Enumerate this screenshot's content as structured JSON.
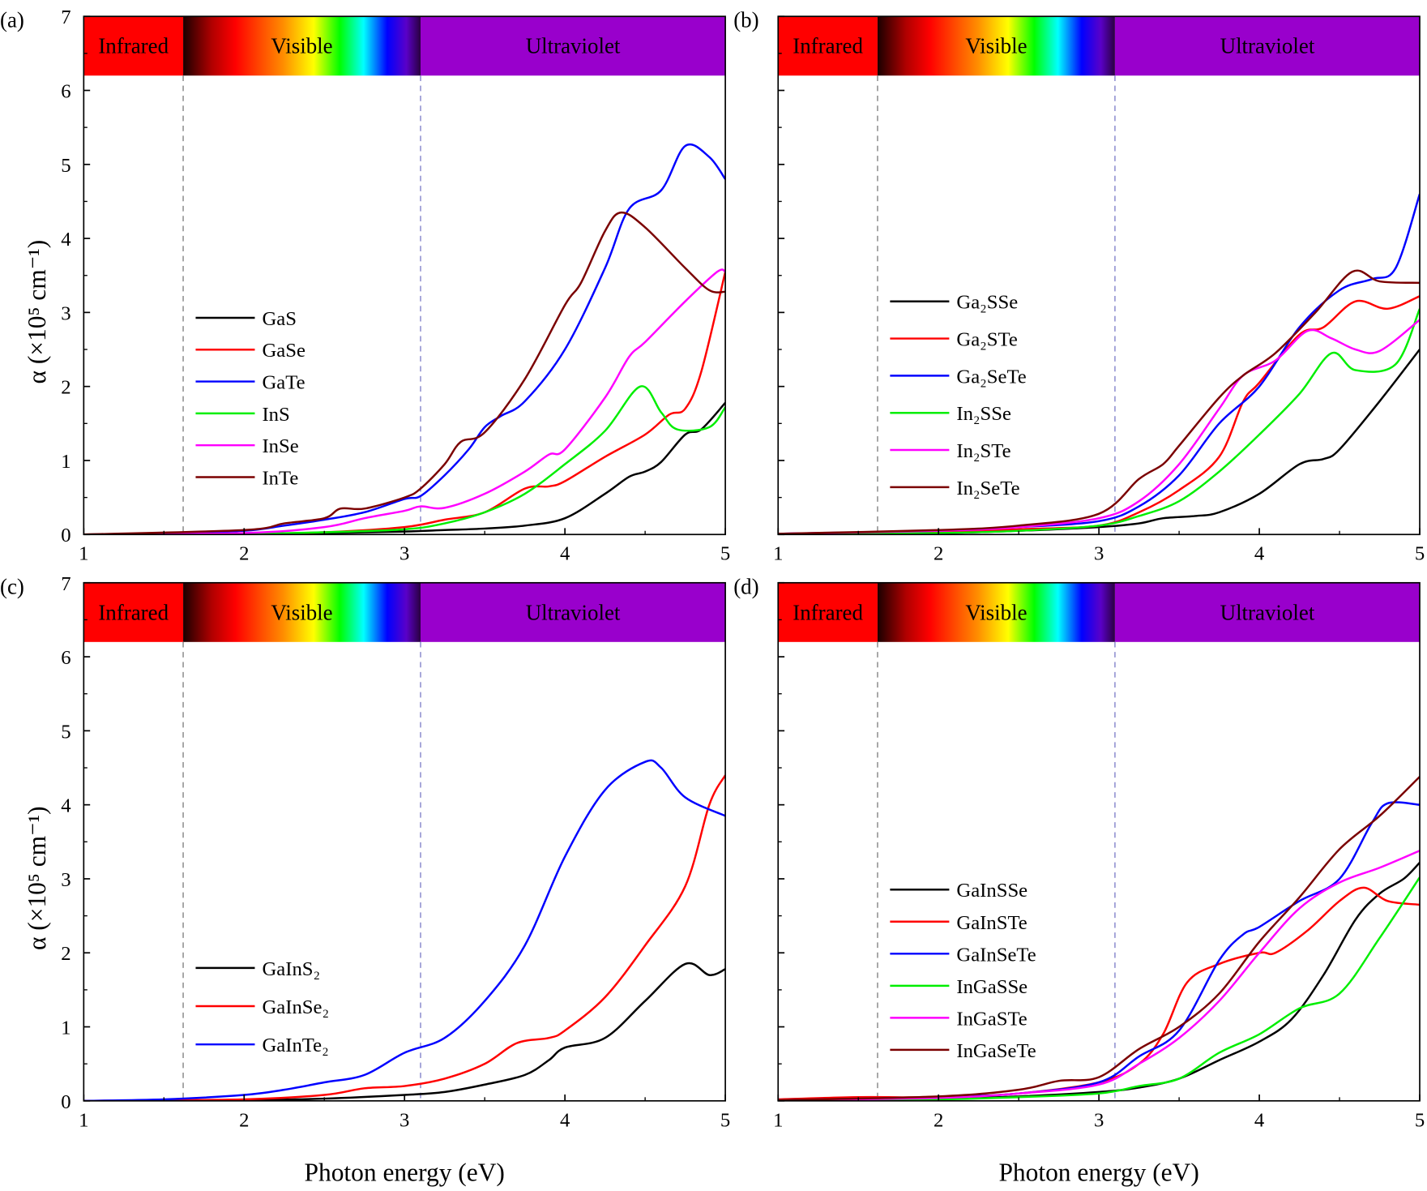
{
  "figure": {
    "xlabel": "Photon energy (eV)",
    "ylabel": "α (×10⁵ cm⁻¹)",
    "bands": [
      {
        "label": "Infrared",
        "from": 1.0,
        "to": 1.62,
        "color": "#ff0000"
      },
      {
        "label": "Visible",
        "from": 1.62,
        "to": 3.1,
        "color": "gradient"
      },
      {
        "label": "Ultraviolet",
        "from": 3.1,
        "to": 5.0,
        "color": "#9900cc"
      }
    ],
    "band_ylim": [
      6.2,
      7
    ],
    "boundaries_eV": [
      1.62,
      3.1
    ]
  },
  "chart_data": [
    {
      "type": "line",
      "panel_label": "(a)",
      "xlim": [
        1,
        5
      ],
      "ylim": [
        0,
        7
      ],
      "xticks": [
        "1",
        "2",
        "3",
        "4",
        "5"
      ],
      "yticks": [
        "0",
        "1",
        "2",
        "3",
        "4",
        "5",
        "6",
        "7"
      ],
      "xlabel": "",
      "ylabel": "α (×10⁵ cm⁻¹)",
      "legend": "center-left",
      "series": [
        {
          "name": "GaS",
          "color": "#000000",
          "x": [
            1,
            2,
            2.5,
            3,
            3.25,
            3.5,
            3.75,
            4,
            4.25,
            4.4,
            4.5,
            4.6,
            4.75,
            4.85,
            5
          ],
          "y": [
            0,
            0.01,
            0.02,
            0.04,
            0.06,
            0.08,
            0.12,
            0.22,
            0.55,
            0.78,
            0.85,
            0.98,
            1.35,
            1.42,
            1.78
          ]
        },
        {
          "name": "GaSe",
          "color": "#ff0000",
          "x": [
            1,
            2,
            2.5,
            3,
            3.25,
            3.5,
            3.75,
            3.9,
            4,
            4.25,
            4.5,
            4.65,
            4.75,
            4.85,
            5
          ],
          "y": [
            0,
            0.01,
            0.03,
            0.1,
            0.2,
            0.3,
            0.62,
            0.65,
            0.72,
            1.05,
            1.35,
            1.62,
            1.7,
            2.2,
            3.55
          ]
        },
        {
          "name": "GaTe",
          "color": "#0000ff",
          "x": [
            1,
            1.5,
            2,
            2.25,
            2.5,
            2.75,
            3,
            3.1,
            3.25,
            3.4,
            3.5,
            3.6,
            3.75,
            4,
            4.25,
            4.4,
            4.6,
            4.75,
            4.9,
            5
          ],
          "y": [
            0,
            0.01,
            0.05,
            0.12,
            0.2,
            0.3,
            0.48,
            0.52,
            0.8,
            1.15,
            1.45,
            1.6,
            1.8,
            2.5,
            3.6,
            4.4,
            4.65,
            5.25,
            5.1,
            4.8
          ]
        },
        {
          "name": "InS",
          "color": "#00ee00",
          "x": [
            1,
            2,
            2.5,
            3,
            3.25,
            3.5,
            3.75,
            4,
            4.25,
            4.47,
            4.6,
            4.7,
            4.9,
            5
          ],
          "y": [
            0,
            0.01,
            0.03,
            0.07,
            0.15,
            0.3,
            0.55,
            0.95,
            1.4,
            2.0,
            1.65,
            1.42,
            1.45,
            1.72
          ]
        },
        {
          "name": "InSe",
          "color": "#ff00ff",
          "x": [
            1,
            2,
            2.5,
            2.75,
            3,
            3.1,
            3.25,
            3.5,
            3.75,
            3.9,
            4,
            4.25,
            4.4,
            4.5,
            4.75,
            4.95,
            5
          ],
          "y": [
            0,
            0.02,
            0.1,
            0.22,
            0.32,
            0.38,
            0.36,
            0.55,
            0.85,
            1.08,
            1.15,
            1.85,
            2.4,
            2.6,
            3.15,
            3.55,
            3.55
          ]
        },
        {
          "name": "InTe",
          "color": "#7b0000",
          "x": [
            1,
            2,
            2.25,
            2.5,
            2.6,
            2.75,
            3,
            3.1,
            3.25,
            3.35,
            3.5,
            3.75,
            4,
            4.1,
            4.25,
            4.35,
            4.5,
            4.75,
            4.9,
            5
          ],
          "y": [
            0,
            0.06,
            0.15,
            0.22,
            0.35,
            0.35,
            0.5,
            0.62,
            0.95,
            1.25,
            1.38,
            2.1,
            3.1,
            3.4,
            4.1,
            4.35,
            4.15,
            3.6,
            3.3,
            3.28
          ]
        }
      ]
    },
    {
      "type": "line",
      "panel_label": "(b)",
      "xlim": [
        1,
        5
      ],
      "ylim": [
        0,
        7
      ],
      "xticks": [
        "1",
        "2",
        "3",
        "4",
        "5"
      ],
      "yticks": [],
      "xlabel": "",
      "ylabel": "",
      "legend": "center-left",
      "series": [
        {
          "name": "Ga₂SSe",
          "color": "#000000",
          "x": [
            1,
            2,
            2.5,
            3,
            3.25,
            3.4,
            3.6,
            3.75,
            4,
            4.25,
            4.4,
            4.5,
            4.75,
            5
          ],
          "y": [
            0,
            0.02,
            0.05,
            0.1,
            0.15,
            0.22,
            0.25,
            0.3,
            0.55,
            0.95,
            1.02,
            1.15,
            1.8,
            2.5
          ]
        },
        {
          "name": "Ga₂STe",
          "color": "#ff0000",
          "x": [
            1,
            2,
            2.5,
            3,
            3.25,
            3.5,
            3.75,
            3.9,
            4,
            4.25,
            4.4,
            4.6,
            4.8,
            5
          ],
          "y": [
            0.01,
            0.03,
            0.07,
            0.12,
            0.3,
            0.6,
            1.05,
            1.8,
            2.05,
            2.7,
            2.8,
            3.15,
            3.05,
            3.22
          ]
        },
        {
          "name": "Ga₂SeTe",
          "color": "#0000ff",
          "x": [
            1,
            2,
            2.5,
            3,
            3.25,
            3.5,
            3.75,
            4,
            4.25,
            4.5,
            4.7,
            4.85,
            5
          ],
          "y": [
            0.01,
            0.05,
            0.1,
            0.18,
            0.38,
            0.8,
            1.5,
            2.0,
            2.8,
            3.3,
            3.45,
            3.6,
            4.6
          ]
        },
        {
          "name": "In₂SSe",
          "color": "#00ee00",
          "x": [
            1,
            2,
            2.5,
            3,
            3.25,
            3.5,
            3.75,
            4,
            4.25,
            4.45,
            4.6,
            4.85,
            5
          ],
          "y": [
            0,
            0.02,
            0.05,
            0.12,
            0.25,
            0.45,
            0.85,
            1.35,
            1.9,
            2.45,
            2.22,
            2.3,
            3.05
          ]
        },
        {
          "name": "In₂STe",
          "color": "#ff00ff",
          "x": [
            1,
            2,
            2.5,
            3,
            3.25,
            3.5,
            3.75,
            3.9,
            4.1,
            4.3,
            4.45,
            4.6,
            4.75,
            5
          ],
          "y": [
            0.01,
            0.05,
            0.1,
            0.22,
            0.45,
            0.95,
            1.7,
            2.15,
            2.35,
            2.75,
            2.65,
            2.5,
            2.48,
            2.9
          ]
        },
        {
          "name": "In₂SeTe",
          "color": "#7b0000",
          "x": [
            1,
            2,
            2.5,
            3,
            3.25,
            3.4,
            3.5,
            3.75,
            3.9,
            4.1,
            4.35,
            4.58,
            4.75,
            5
          ],
          "y": [
            0.01,
            0.06,
            0.12,
            0.28,
            0.75,
            0.95,
            1.2,
            1.85,
            2.15,
            2.45,
            3.0,
            3.55,
            3.42,
            3.4
          ]
        }
      ]
    },
    {
      "type": "line",
      "panel_label": "(c)",
      "xlim": [
        1,
        5
      ],
      "ylim": [
        0,
        7
      ],
      "xticks": [
        "1",
        "2",
        "3",
        "4",
        "5"
      ],
      "yticks": [
        "0",
        "1",
        "2",
        "3",
        "4",
        "5",
        "6",
        "7"
      ],
      "xlabel": "Photon energy (eV)",
      "ylabel": "α (×10⁵ cm⁻¹)",
      "legend": "lower-left",
      "series": [
        {
          "name": "GaInS₂",
          "color": "#000000",
          "x": [
            1,
            2,
            2.5,
            3,
            3.25,
            3.5,
            3.75,
            3.9,
            4,
            4.25,
            4.5,
            4.75,
            4.9,
            5
          ],
          "y": [
            0,
            0.01,
            0.03,
            0.08,
            0.12,
            0.22,
            0.35,
            0.55,
            0.72,
            0.85,
            1.35,
            1.85,
            1.7,
            1.78
          ]
        },
        {
          "name": "GaInSe₂",
          "color": "#ff0000",
          "x": [
            1,
            2,
            2.5,
            2.75,
            3,
            3.25,
            3.5,
            3.7,
            3.9,
            4,
            4.25,
            4.5,
            4.75,
            4.9,
            5
          ],
          "y": [
            0,
            0.02,
            0.08,
            0.17,
            0.2,
            0.3,
            0.5,
            0.78,
            0.85,
            0.95,
            1.4,
            2.1,
            2.9,
            4.0,
            4.4
          ]
        },
        {
          "name": "GaInTe₂",
          "color": "#0000ff",
          "x": [
            1,
            1.5,
            2,
            2.25,
            2.5,
            2.75,
            3,
            3.25,
            3.5,
            3.75,
            4,
            4.25,
            4.5,
            4.6,
            4.75,
            5
          ],
          "y": [
            0,
            0.02,
            0.08,
            0.15,
            0.25,
            0.35,
            0.65,
            0.85,
            1.35,
            2.1,
            3.3,
            4.2,
            4.58,
            4.5,
            4.1,
            3.85
          ]
        }
      ]
    },
    {
      "type": "line",
      "panel_label": "(d)",
      "xlim": [
        1,
        5
      ],
      "ylim": [
        0,
        7
      ],
      "xticks": [
        "1",
        "2",
        "3",
        "4",
        "5"
      ],
      "yticks": [],
      "xlabel": "Photon energy (eV)",
      "ylabel": "",
      "legend": "lower-left",
      "series": [
        {
          "name": "GaInSSe",
          "color": "#000000",
          "x": [
            1,
            2,
            2.5,
            3,
            3.25,
            3.5,
            3.75,
            4,
            4.2,
            4.4,
            4.6,
            4.75,
            4.9,
            5
          ],
          "y": [
            0.01,
            0.03,
            0.06,
            0.12,
            0.18,
            0.3,
            0.55,
            0.8,
            1.1,
            1.7,
            2.45,
            2.8,
            3.0,
            3.22
          ]
        },
        {
          "name": "GaInSTe",
          "color": "#ff0000",
          "x": [
            1,
            1.5,
            2,
            2.5,
            3,
            3.25,
            3.4,
            3.55,
            3.75,
            4,
            4.1,
            4.3,
            4.5,
            4.65,
            4.8,
            5
          ],
          "y": [
            0.02,
            0.05,
            0.05,
            0.1,
            0.25,
            0.5,
            0.9,
            1.6,
            1.85,
            2.0,
            2.0,
            2.3,
            2.7,
            2.88,
            2.7,
            2.65
          ]
        },
        {
          "name": "GaInSeTe",
          "color": "#0000ff",
          "x": [
            1,
            2,
            2.5,
            3,
            3.25,
            3.5,
            3.75,
            3.9,
            4,
            4.25,
            4.5,
            4.7,
            4.8,
            5
          ],
          "y": [
            0.01,
            0.05,
            0.1,
            0.25,
            0.6,
            0.95,
            1.9,
            2.25,
            2.35,
            2.7,
            3.0,
            3.75,
            4.02,
            4.0
          ]
        },
        {
          "name": "InGaSSe",
          "color": "#00ee00",
          "x": [
            1,
            2,
            2.5,
            3,
            3.25,
            3.5,
            3.75,
            4,
            4.25,
            4.5,
            4.75,
            5
          ],
          "y": [
            0,
            0.02,
            0.05,
            0.1,
            0.2,
            0.3,
            0.65,
            0.9,
            1.25,
            1.45,
            2.2,
            3.02
          ]
        },
        {
          "name": "InGaSTe",
          "color": "#ff00ff",
          "x": [
            1,
            2,
            2.5,
            3,
            3.25,
            3.5,
            3.75,
            4,
            4.25,
            4.5,
            4.75,
            5
          ],
          "y": [
            0.01,
            0.04,
            0.1,
            0.22,
            0.5,
            0.85,
            1.35,
            2.0,
            2.6,
            2.95,
            3.15,
            3.38
          ]
        },
        {
          "name": "InGaSeTe",
          "color": "#7b0000",
          "x": [
            1,
            2,
            2.5,
            2.75,
            3,
            3.25,
            3.5,
            3.75,
            4,
            4.25,
            4.5,
            4.75,
            5
          ],
          "y": [
            0.01,
            0.06,
            0.15,
            0.27,
            0.32,
            0.7,
            1.0,
            1.45,
            2.15,
            2.75,
            3.4,
            3.85,
            4.38
          ]
        }
      ]
    }
  ]
}
